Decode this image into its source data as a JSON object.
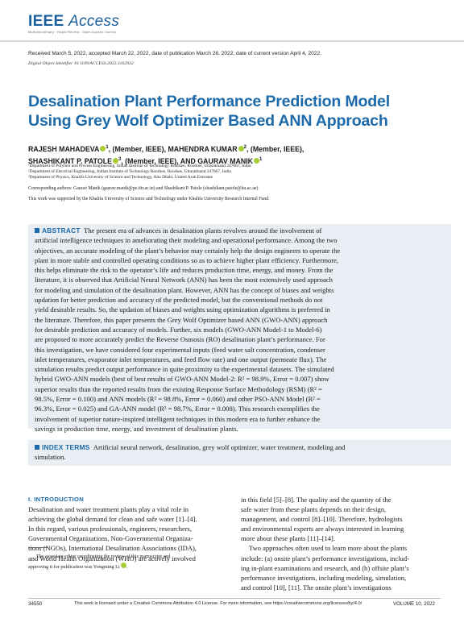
{
  "journal": {
    "logo_ieee": "IEEE",
    "logo_access": "Access",
    "tagline": "Multidisciplinary  :  Rapid Review  :  Open Access Journal"
  },
  "dates": "Received March 5, 2022, accepted March 22, 2022, date of publication March 28, 2022, date of current version April 4, 2022.",
  "doi": "Digital Object Identifier 10.1109/ACCESS.2022.3162932",
  "title_lines": [
    "Desalination Plant Performance Prediction Model",
    "Using Grey Wolf Optimizer Based ANN Approach"
  ],
  "authors": {
    "line1": {
      "a1": "RAJESH MAHADEVA",
      "s1": "1",
      "r1": ", (Member, IEEE), ",
      "a2": "MAHENDRA KUMAR",
      "s2": "2",
      "r2": ", (Member, IEEE),"
    },
    "line2": {
      "a3": "SHASHIKANT P. PATOLE",
      "s3": "3",
      "r3": ", (Member, IEEE), AND ",
      "a4": "GAURAV MANIK",
      "s4": "1"
    }
  },
  "affiliations": [
    "¹Department of Polymer and Process Engineering, Indian Institute of Technology Roorkee, Roorkee, Uttarakhand 247667, India",
    "²Department of Electrical Engineering, Indian Institute of Technology Roorkee, Roorkee, Uttarakhand 247667, India",
    "³Department of Physics, Khalifa University of Science and Technology, Abu Dhabi, United Arab Emirates"
  ],
  "corresponding": "Corresponding authors: Gaurav Manik (gaurav.manik@pe.iitr.ac.in) and Shashikant P. Patole (shashikant.patole@ku.ac.ae)",
  "support": "This work was supported by the Khalifa University of Science and Technology under Khalifa University Research Internal Fund.",
  "abstract": {
    "label": "ABSTRACT",
    "first_line": "The present era of advances in desalination plants revolves around the involvement of",
    "lines": [
      "artificial intelligence techniques in ameliorating their modeling and operational performance. Among the two",
      "objectives, an accurate modeling of the plant’s behavior may certainly help the design engineers to operate the",
      "plant in more stable and controlled operating conditions so as to achieve higher plant efficiency. Furthermore,",
      "this helps eliminate the risk to the operator’s life and reduces production time, energy, and money. From the",
      "literature, it is observed that Artificial Neural Network (ANN) has been the most extensively used approach",
      "for modeling and simulation of the desalination plant. However, ANN has the concept of biases and weights",
      "updation for better prediction and accuracy of the predicted model, but the conventional methods do not",
      "yield desirable results. So, the updation of biases and weights using optimization algorithms is preferred in",
      "the literature. Therefore, this paper presents the Grey Wolf Optimizer based ANN (GWO-ANN) approach",
      "for desirable prediction and accuracy of models. Further, six models (GWO-ANN Model-1 to Model-6)",
      "are proposed to more accurately predict the Reverse Osmosis (RO) desalination plant’s performance. For",
      "this investigation, we have considered four experimental inputs (feed water salt concentration, condenser",
      "inlet temperatures, evaporator inlet temperatures, and feed flow rate) and one output (permeate flux). The",
      "simulation results predict output performance in quite proximity to the experimental datasets. The simulated",
      "hybrid GWO-ANN models (best of best results of GWO-ANN Model-2: R² = 98.9%, Error = 0.007) show",
      "superior results than the reported results from the existing Response Surface Methodology (RSM) (R² =",
      "98.5%, Error = 0.100) and ANN models (R² = 98.8%, Error = 0.060) and other PSO-ANN Model (R² =",
      "96.3%, Error = 0.025) and GA-ANN model (R² = 98.7%, Error = 0.008). This research exemplifies the",
      "involvement of superior nature-inspired intelligent techniques in this modern era to further enhance the",
      "savings in production time, energy, and investment of desalination plants."
    ]
  },
  "index_terms": {
    "label": "INDEX TERMS",
    "first_line": "Artificial neural network, desalination, grey wolf optimizer, water treatment, modeling and",
    "second_line": "simulation."
  },
  "intro": {
    "heading": "I. INTRODUCTION",
    "left_lines": [
      "Desalination and water treatment plants play a vital role in",
      "achieving the global demand for clean and safe water [1]–[4].",
      "In this regard, various professionals, engineers, researchers,",
      "Governmental Organizations, Non-Governmental Organiza-",
      "tions (NGOs), International Desalination Associations (IDA),",
      "and World Health Organization (WHO) are actively involved"
    ],
    "right_lines": [
      "in this field [5]–[8]. The quality and the quantity of the",
      "safe water from these plants depends on their design,",
      "management, and control [8]–[10]. Therefore, hydrologists",
      "and environmental experts are always interested in learning",
      "more about these plants [11]–[14].",
      "Two approaches often used to learn more about the plants",
      "include: (a) onsite plant’s performance investigations, includ-",
      "ing in-plant examinations and research, and (b) offsite plant’s",
      "performance investigations, including modeling, simulation,",
      "and control [10], [11]. The onsite plant’s investigations"
    ]
  },
  "footnote": {
    "line1": "The associate editor coordinating the review of this manuscript and",
    "line2": "approving it for publication was Yongming Li"
  },
  "footer": {
    "page": "34550",
    "license": "This work is licensed under a Creative Commons Attribution 4.0 License. For more information, see https://creativecommons.org/licenses/by/4.0/",
    "volume": "VOLUME 10, 2022"
  },
  "colors": {
    "accent": "#1c6aa9",
    "shade": "#e9eef4",
    "orcid": "#a6ce39"
  }
}
